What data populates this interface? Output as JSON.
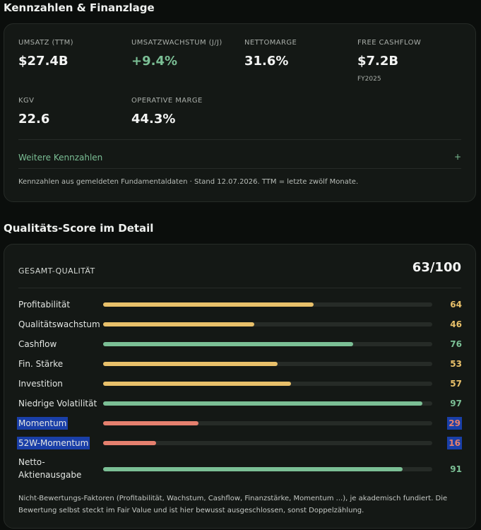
{
  "financials": {
    "title": "Kennzahlen & Finanzlage",
    "metrics": [
      {
        "label": "UMSATZ (TTM)",
        "value": "$27.4B",
        "sub": ""
      },
      {
        "label": "UMSATZWACHSTUM (J/J)",
        "value": "+9.4%",
        "sub": ""
      },
      {
        "label": "NETTOMARGE",
        "value": "31.6%",
        "sub": ""
      },
      {
        "label": "FREE CASHFLOW",
        "value": "$7.2B",
        "sub": "FY2025"
      },
      {
        "label": "KGV",
        "value": "22.6",
        "sub": ""
      },
      {
        "label": "OPERATIVE MARGE",
        "value": "44.3%",
        "sub": ""
      }
    ],
    "more_link": "Weitere Kennzahlen",
    "more_icon": "+",
    "footnote": "Kennzahlen aus gemeldeten Fundamentaldaten · Stand 12.07.2026. TTM = letzte zwölf Monate."
  },
  "quality": {
    "title": "Qualitäts-Score im Detail",
    "total_label": "GESAMT-QUALITÄT",
    "total_value": "63/100",
    "scores": [
      {
        "name": "Profitabilität",
        "value": 64,
        "color": "#e8c06a"
      },
      {
        "name": "Qualitätswachstum",
        "value": 46,
        "color": "#e8c06a"
      },
      {
        "name": "Cashflow",
        "value": 76,
        "color": "#7bbf95"
      },
      {
        "name": "Fin. Stärke",
        "value": 53,
        "color": "#e8c06a"
      },
      {
        "name": "Investition",
        "value": 57,
        "color": "#e8c06a"
      },
      {
        "name": "Niedrige Volatilität",
        "value": 97,
        "color": "#7bbf95"
      },
      {
        "name": "Momentum",
        "value": 29,
        "color": "#e5806e"
      },
      {
        "name": "52W-Momentum",
        "value": 16,
        "color": "#e5806e"
      },
      {
        "name": "Netto-Aktienausgabe",
        "value": 91,
        "color": "#7bbf95"
      }
    ],
    "note": "Nicht-Bewertungs-Faktoren (Profitabilität, Wachstum, Cashflow, Finanzstärke, Momentum ...), je akademisch fundiert. Die Bewertung selbst steckt im Fair Value und ist hier bewusst ausgeschlossen, sonst Doppelzählung."
  }
}
